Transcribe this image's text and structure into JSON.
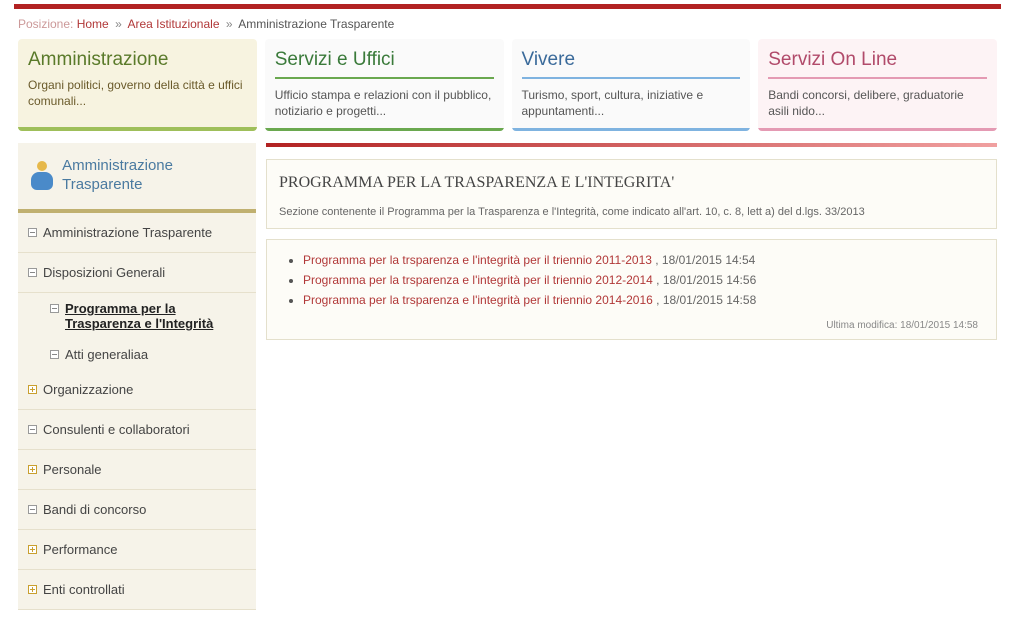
{
  "breadcrumb": {
    "pos_label": "Posizione:",
    "home": "Home",
    "area": "Area Istituzionale",
    "current": "Amministrazione Trasparente",
    "sep": "»"
  },
  "cards": {
    "amm": {
      "title": "Amministrazione",
      "body": "Organi politici, governo della città e uffici comunali..."
    },
    "servizi": {
      "title": "Servizi e Uffici",
      "body": "Ufficio stampa e relazioni con il pubblico, notiziario e progetti..."
    },
    "vivere": {
      "title": "Vivere",
      "body": "Turismo, sport, cultura, iniziative e appuntamenti..."
    },
    "online": {
      "title": "Servizi On Line",
      "body": "Bandi concorsi, delibere, graduatorie asili nido..."
    }
  },
  "sidebar": {
    "title": "Amministrazione Trasparente",
    "items": [
      {
        "label": "Amministrazione Trasparente",
        "marker": "minus"
      },
      {
        "label": "Disposizioni Generali",
        "marker": "minus",
        "children": [
          {
            "label": "Programma per la Trasparenza e l'Integrità",
            "marker": "minus",
            "active": true
          },
          {
            "label": "Atti generaliaa",
            "marker": "minus"
          }
        ]
      },
      {
        "label": "Organizzazione",
        "marker": "plus"
      },
      {
        "label": "Consulenti e collaboratori",
        "marker": "minus"
      },
      {
        "label": "Personale",
        "marker": "plus"
      },
      {
        "label": "Bandi di concorso",
        "marker": "minus"
      },
      {
        "label": "Performance",
        "marker": "plus"
      },
      {
        "label": "Enti controllati",
        "marker": "plus"
      }
    ]
  },
  "content": {
    "title": "PROGRAMMA PER LA TRASPARENZA E L'INTEGRITA'",
    "desc": "Sezione contenente il Programma per la Trasparenza e l'Integrità, come indicato all'art. 10, c. 8, lett a) del d.lgs. 33/2013",
    "docs": [
      {
        "link": "Programma per la trsparenza e l'integrità per il triennio 2011-2013",
        "meta": ",  18/01/2015 14:54"
      },
      {
        "link": "Programma per la trsparenza e l'integrità per il triennio 2012-2014",
        "meta": ",  18/01/2015 14:56"
      },
      {
        "link": "Programma per la trsparenza e l'integrità per il triennio 2014-2016",
        "meta": ",  18/01/2015 14:58"
      }
    ],
    "last_mod": "Ultima modifica: 18/01/2015 14:58"
  },
  "colors": {
    "topbar": "#b22222",
    "link": "#b13838",
    "sidebar_bg": "#f6f3e9",
    "sidebar_border": "#c0b070",
    "content_border": "#e4e0cc"
  }
}
